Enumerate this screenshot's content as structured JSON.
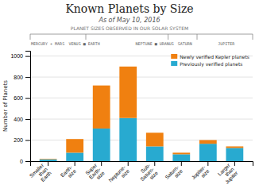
{
  "chart_data": {
    "type": "bar",
    "stacked": true,
    "title": "Known Planets by Size",
    "subtitle": "As of May 10, 2016",
    "ylabel": "Number of Planets",
    "categories": [
      "Smaller\nthan\nEarth",
      "Earth-\nsize",
      "Super\nEarth-\nsize",
      "Neptune-\nsize",
      "Sub-\nSaturn-\nsize",
      "Saturn-\nsize",
      "Jupiter-\nsize",
      "Larger\nthan\nJupiter"
    ],
    "series": [
      {
        "name": "Previously verified planets",
        "color": "#28aad0",
        "values": [
          15,
          80,
          310,
          410,
          140,
          65,
          165,
          125
        ]
      },
      {
        "name": "Newly verified Kepler planets",
        "color": "#f08010",
        "values": [
          5,
          130,
          410,
          490,
          130,
          15,
          35,
          15
        ]
      }
    ],
    "ylim": [
      0,
      1050
    ],
    "yticks": [
      0,
      200,
      400,
      600,
      800,
      1000
    ],
    "grid": true,
    "legend": "upper right",
    "annotations": [
      "PLANET SIZES OBSERVED IN OUR SOLAR SYSTEM",
      "MERCURY + MARS",
      "VENUS ■ EARTH",
      "NEPTUNE ■ URANUS",
      "SATURN",
      "JUPITER"
    ]
  }
}
